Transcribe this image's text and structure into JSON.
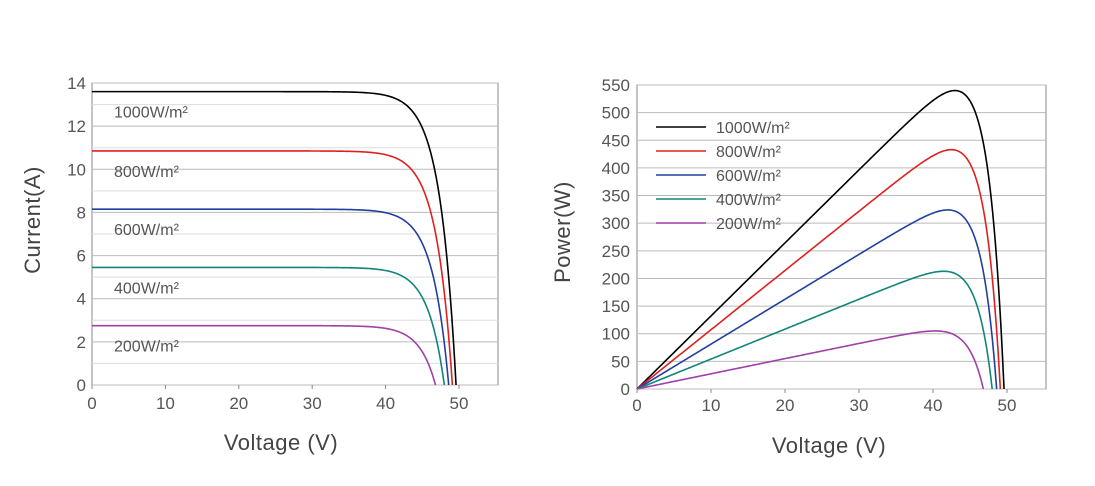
{
  "chart_data": [
    {
      "type": "line",
      "xlabel": "Voltage  (V)",
      "ylabel": "Current(A)",
      "xlim": [
        0,
        55
      ],
      "ylim": [
        0,
        14
      ],
      "xticks": [
        "0",
        "10",
        "20",
        "30",
        "40",
        "50"
      ],
      "yticks": [
        "0",
        "2",
        "4",
        "6",
        "8",
        "10",
        "12",
        "14"
      ],
      "grid": "horizontal",
      "series": [
        {
          "name": "1000W/m²",
          "color": "#000000",
          "isc": 13.6,
          "voc": 49.6,
          "points": [
            [
              0,
              13.6
            ],
            [
              35,
              13.55
            ],
            [
              39,
              13.45
            ],
            [
              42,
              13.0
            ],
            [
              44,
              11.2
            ],
            [
              46,
              7.5
            ],
            [
              48,
              3.3
            ],
            [
              49.6,
              0
            ]
          ]
        },
        {
          "name": "800W/m²",
          "color": "#e02020",
          "isc": 10.85,
          "voc": 49.1,
          "points": [
            [
              0,
              10.85
            ],
            [
              36,
              10.8
            ],
            [
              40,
              10.6
            ],
            [
              42,
              10.1
            ],
            [
              44,
              8.6
            ],
            [
              46,
              5.7
            ],
            [
              48,
              2.3
            ],
            [
              49.1,
              0
            ]
          ]
        },
        {
          "name": "600W/m²",
          "color": "#2040a0",
          "isc": 8.15,
          "voc": 48.6,
          "points": [
            [
              0,
              8.15
            ],
            [
              36,
              8.1
            ],
            [
              40,
              7.95
            ],
            [
              42,
              7.6
            ],
            [
              44,
              6.5
            ],
            [
              46,
              4.3
            ],
            [
              47.5,
              2.0
            ],
            [
              48.6,
              0
            ]
          ]
        },
        {
          "name": "400W/m²",
          "color": "#10857a",
          "isc": 5.45,
          "voc": 48.0,
          "points": [
            [
              0,
              5.45
            ],
            [
              36,
              5.42
            ],
            [
              40,
              5.3
            ],
            [
              42,
              5.0
            ],
            [
              44,
              4.2
            ],
            [
              46,
              2.7
            ],
            [
              47,
              1.5
            ],
            [
              48,
              0
            ]
          ]
        },
        {
          "name": "200W/m²",
          "color": "#a040a8",
          "isc": 2.75,
          "voc": 46.8,
          "points": [
            [
              0,
              2.75
            ],
            [
              36,
              2.72
            ],
            [
              40,
              2.65
            ],
            [
              42,
              2.5
            ],
            [
              44,
              2.0
            ],
            [
              45.5,
              1.2
            ],
            [
              46.8,
              0
            ]
          ]
        }
      ]
    },
    {
      "type": "line",
      "xlabel": "Voltage  (V)",
      "ylabel": "Power(W)",
      "xlim": [
        0,
        55
      ],
      "ylim": [
        0,
        550
      ],
      "xticks": [
        "0",
        "10",
        "20",
        "30",
        "40",
        "50"
      ],
      "yticks": [
        "0",
        "50",
        "100",
        "150",
        "200",
        "250",
        "300",
        "350",
        "400",
        "450",
        "500",
        "550"
      ],
      "grid": "horizontal",
      "legend": "top-left",
      "series": [
        {
          "name": "1000W/m²",
          "color": "#000000",
          "pmax": 540,
          "vmp": 41.5,
          "voc": 49.6
        },
        {
          "name": "800W/m²",
          "color": "#e02020",
          "pmax": 433,
          "vmp": 41.5,
          "voc": 49.1
        },
        {
          "name": "600W/m²",
          "color": "#2040a0",
          "pmax": 324,
          "vmp": 41.5,
          "voc": 48.6
        },
        {
          "name": "400W/m²",
          "color": "#10857a",
          "pmax": 213,
          "vmp": 41.5,
          "voc": 48.0
        },
        {
          "name": "200W/m²",
          "color": "#a040a8",
          "pmax": 105,
          "vmp": 41.0,
          "voc": 46.8
        }
      ]
    }
  ]
}
